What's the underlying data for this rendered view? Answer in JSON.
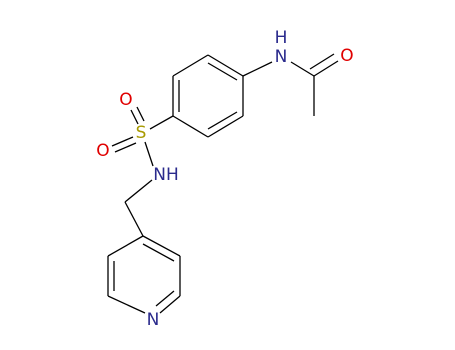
{
  "molecule": {
    "atoms": [
      {
        "label": "H"
      },
      {
        "label": "N"
      },
      {
        "label": "O"
      },
      {
        "label": "S"
      },
      {
        "label": "O"
      },
      {
        "label": "O"
      },
      {
        "label": "NH"
      },
      {
        "label": "N"
      }
    ]
  }
}
